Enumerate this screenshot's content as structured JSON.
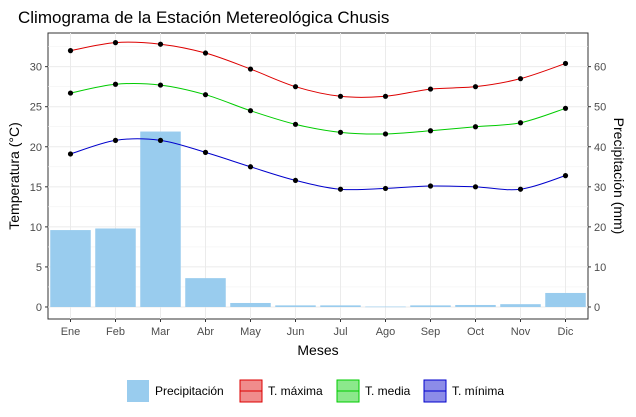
{
  "chart_data": {
    "type": "bar",
    "title": "Climograma de la Estación Metereológica Chusis",
    "xlabel": "Meses",
    "ylabel": "Temperatura (°C)",
    "y2label": "Precipitación (mm)",
    "categories": [
      "Ene",
      "Feb",
      "Mar",
      "Abr",
      "May",
      "Jun",
      "Jul",
      "Ago",
      "Sep",
      "Oct",
      "Nov",
      "Dic"
    ],
    "ylim": [
      -1.5,
      34.2
    ],
    "y_ticks": [
      0,
      5,
      10,
      15,
      20,
      25,
      30
    ],
    "y2_ticks": [
      0,
      10,
      20,
      30,
      40,
      50,
      60
    ],
    "y2_factor": 2,
    "grid": true,
    "legend_position": "bottom",
    "series": [
      {
        "name": "Precipitación",
        "kind": "bar",
        "axis": "right",
        "color": "#99ccee",
        "values": [
          19.2,
          19.6,
          43.8,
          7.2,
          1.0,
          0.4,
          0.4,
          0.1,
          0.4,
          0.5,
          0.7,
          3.5
        ]
      },
      {
        "name": "T. máxima",
        "kind": "line",
        "axis": "left",
        "color": "#dd0000",
        "values": [
          32.0,
          33.0,
          32.8,
          31.7,
          29.7,
          27.5,
          26.3,
          26.3,
          27.2,
          27.5,
          28.5,
          30.4
        ]
      },
      {
        "name": "T. media",
        "kind": "line",
        "axis": "left",
        "color": "#00cc00",
        "values": [
          26.7,
          27.8,
          27.7,
          26.5,
          24.5,
          22.8,
          21.8,
          21.6,
          22.0,
          22.5,
          23.0,
          24.8
        ]
      },
      {
        "name": "T. mínima",
        "kind": "line",
        "axis": "left",
        "color": "#0000cc",
        "values": [
          19.1,
          20.8,
          20.8,
          19.3,
          17.5,
          15.8,
          14.7,
          14.8,
          15.1,
          15.0,
          14.7,
          16.4
        ]
      }
    ]
  }
}
